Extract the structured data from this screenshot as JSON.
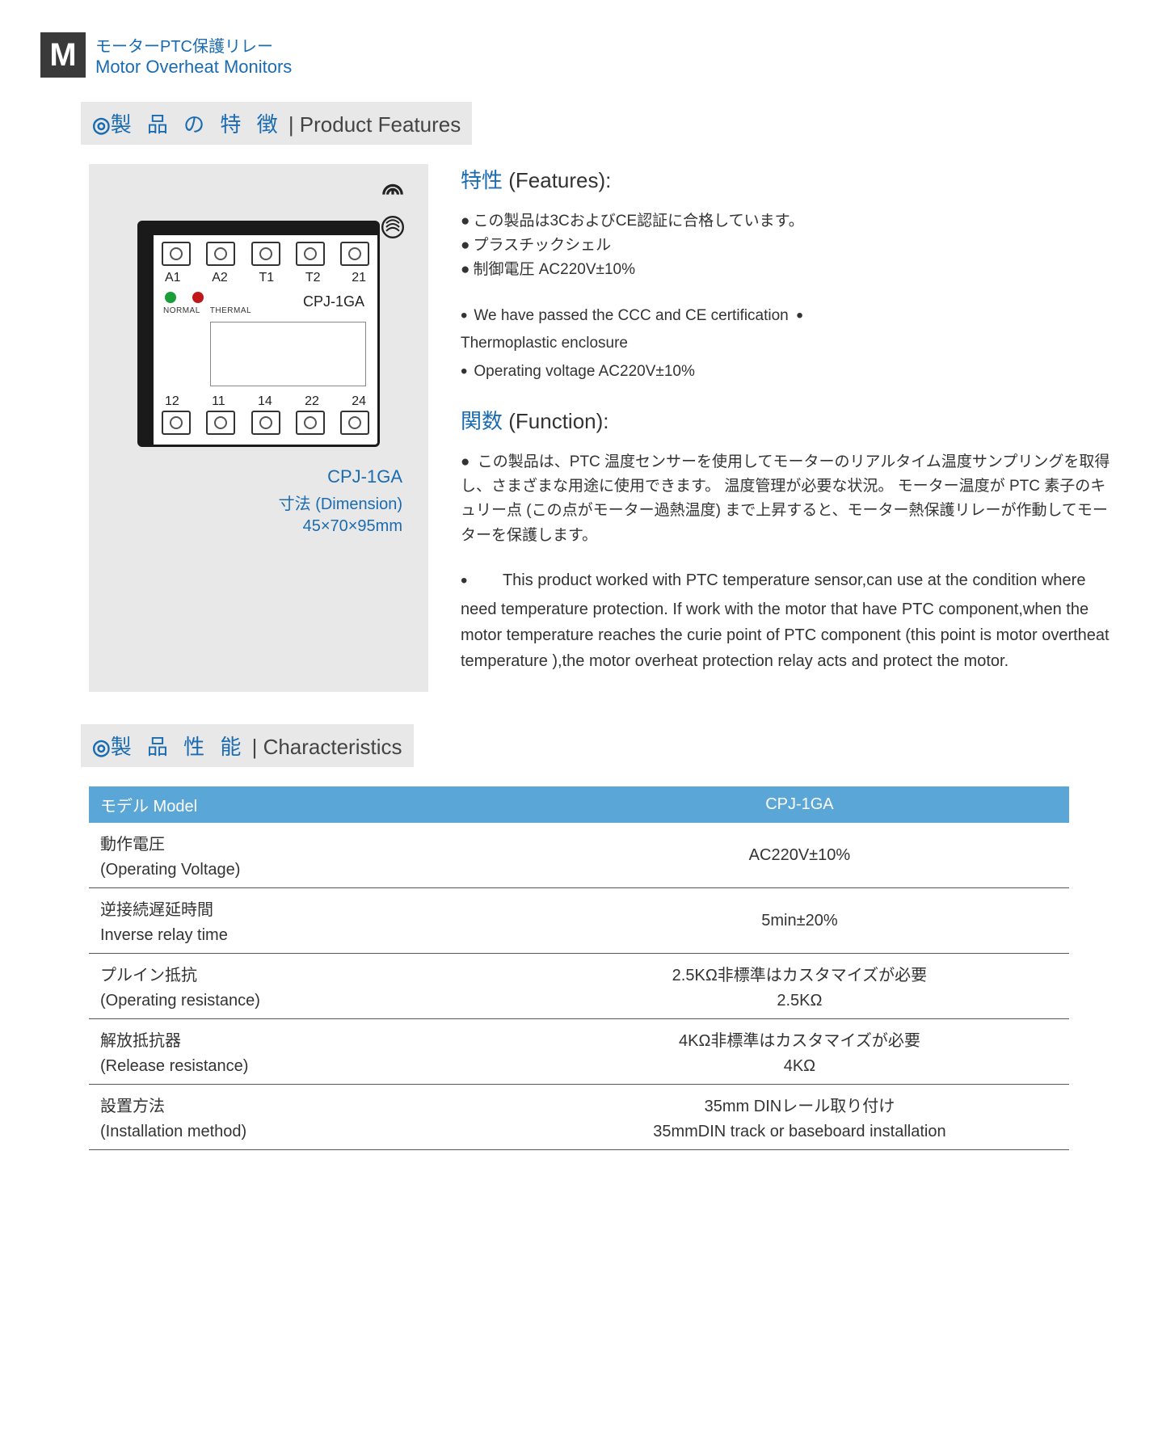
{
  "header": {
    "m_letter": "M",
    "title_jp": "モーターPTC保護リレー",
    "title_en": "Motor Overheat Monitors"
  },
  "section_features": {
    "circle": "◎",
    "jp": "製 品 の 特 徴",
    "sep": " | ",
    "en": "Product  Features"
  },
  "product": {
    "terminals_top": [
      "A1",
      "A2",
      "T1",
      "T2",
      "21"
    ],
    "terminals_bottom": [
      "12",
      "11",
      "14",
      "22",
      "24"
    ],
    "led_labels": [
      "NORMAL",
      "THERMAL"
    ],
    "model_on_device": "CPJ-1GA",
    "caption_model": "CPJ-1GA",
    "caption_dim_label": "寸法  (Dimension)",
    "caption_dim_value": "45×70×95mm"
  },
  "features_text": {
    "head1_jp": "特性",
    "head1_paren": " (Features):",
    "jp_bullets": [
      "この製品は3CおよびCE認証に合格しています。",
      "プラスチックシェル",
      "制御電圧 AC220V±10%"
    ],
    "en_bullets_a": "We have passed the CCC and CE certification",
    "en_bullets_b": "Thermoplastic enclosure",
    "en_bullets_c": "Operating voltage AC220V±10%",
    "head2_jp": "関数",
    "head2_paren": "  (Function):",
    "jp_func": "この製品は、PTC 温度センサーを使用してモーターのリアルタイム温度サンプリングを取得し、さまざまな用途に使用できます。 温度管理が必要な状況。  モーター温度が PTC 素子のキュリー点 (この点がモーター過熱温度) まで上昇すると、モーター熱保護リレーが作動してモーターを保護します。",
    "en_func": "This product worked with PTC temperature sensor,can use at the condition where need temperature protection. If work with the motor that have PTC component,when the motor temperature reaches the curie point of PTC component (this point is motor overtheat temperature ),the motor overheat protection relay acts and protect the motor."
  },
  "section_characteristics": {
    "circle": "◎",
    "jp": "製 品 性 能",
    "sep": " | ",
    "en": "Characteristics"
  },
  "table": {
    "header_label": "モデル  Model",
    "header_value": "CPJ-1GA",
    "rows": [
      {
        "label_jp": "動作電圧",
        "label_en": "(Operating Voltage)",
        "val_jp": "",
        "val_en": "AC220V±10%"
      },
      {
        "label_jp": "逆接続遅延時間",
        "label_en": "Inverse relay time",
        "val_jp": "",
        "val_en": "5min±20%"
      },
      {
        "label_jp": "プルイン抵抗",
        "label_en": "(Operating resistance)",
        "val_jp": "2.5KΩ非標準はカスタマイズが必要",
        "val_en": "2.5KΩ"
      },
      {
        "label_jp": "解放抵抗器",
        "label_en": "(Release resistance)",
        "val_jp": "4KΩ非標準はカスタマイズが必要",
        "val_en": "4KΩ"
      },
      {
        "label_jp": "設置方法",
        "label_en": "(Installation method)",
        "val_jp": "35mm DINレール取り付け",
        "val_en": "35mmDIN track or baseboard installation"
      }
    ]
  },
  "colors": {
    "brand_blue": "#1a6bb0",
    "bar_bg": "#e8e8e8",
    "table_header_bg": "#5aa6d6",
    "text": "#333333"
  }
}
